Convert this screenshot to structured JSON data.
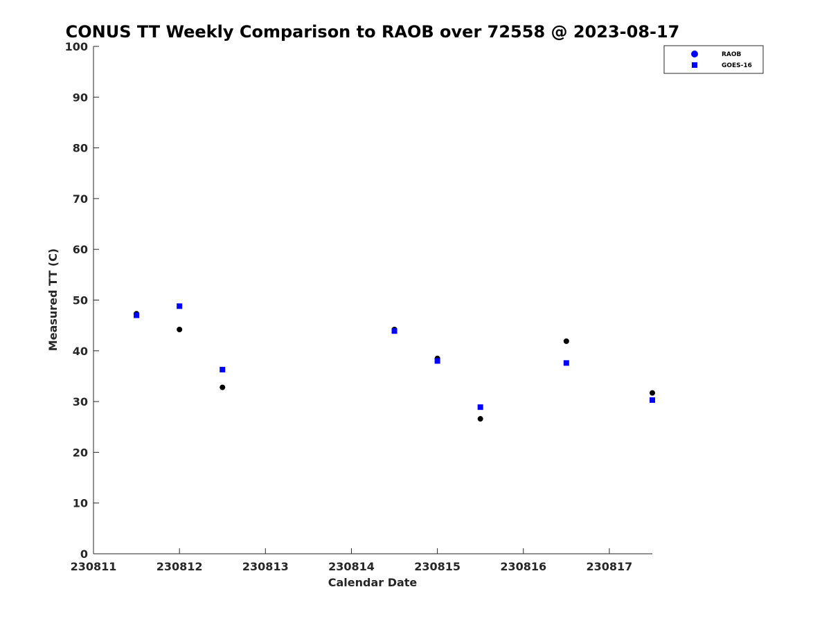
{
  "chart_data": {
    "type": "scatter",
    "title": "CONUS TT Weekly Comparison to RAOB over 72558 @ 2023-08-17",
    "xlabel": "Calendar Date",
    "ylabel": "Measured TT (C)",
    "x_ticks": [
      "230811",
      "230812",
      "230813",
      "230814",
      "230815",
      "230816",
      "230817"
    ],
    "y_ticks": [
      "0",
      "10",
      "20",
      "30",
      "40",
      "50",
      "60",
      "70",
      "80",
      "90",
      "100"
    ],
    "xlim": [
      0,
      6.5
    ],
    "ylim": [
      0,
      100
    ],
    "grid": false,
    "legend_position": "top-right",
    "series": [
      {
        "name": "RAOB",
        "marker": "circle",
        "color": "#000000",
        "legend_color": "#0000ff",
        "points": [
          {
            "x": 0.5,
            "y": 47.3
          },
          {
            "x": 1.0,
            "y": 44.2
          },
          {
            "x": 1.5,
            "y": 32.8
          },
          {
            "x": 3.5,
            "y": 44.2
          },
          {
            "x": 4.0,
            "y": 38.5
          },
          {
            "x": 4.5,
            "y": 26.6
          },
          {
            "x": 5.5,
            "y": 41.9
          },
          {
            "x": 6.5,
            "y": 31.7
          }
        ]
      },
      {
        "name": "GOES-16",
        "marker": "square",
        "color": "#0000ff",
        "legend_color": "#0000ff",
        "points": [
          {
            "x": 0.5,
            "y": 47.0
          },
          {
            "x": 1.0,
            "y": 48.8
          },
          {
            "x": 1.5,
            "y": 36.3
          },
          {
            "x": 3.5,
            "y": 43.9
          },
          {
            "x": 4.0,
            "y": 38.0
          },
          {
            "x": 4.5,
            "y": 28.9
          },
          {
            "x": 5.5,
            "y": 37.6
          },
          {
            "x": 6.5,
            "y": 30.3
          }
        ]
      }
    ]
  }
}
